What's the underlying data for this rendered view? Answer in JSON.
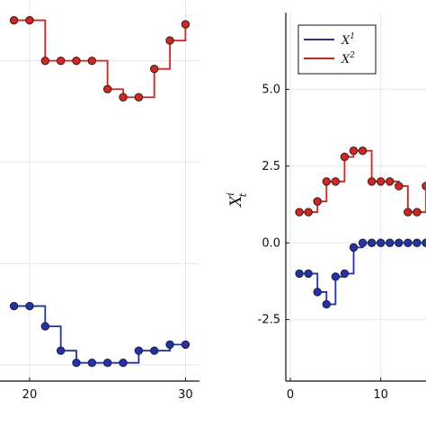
{
  "chart_data": [
    {
      "type": "line",
      "step": "post",
      "markers": true,
      "grid": true,
      "x_ticks": [
        20,
        30
      ],
      "y_ticks": [],
      "xlim": [
        18.1,
        30.9
      ],
      "ylim": [
        -2.9,
        6.5
      ],
      "series": [
        {
          "color": "#e0201b",
          "x": [
            19,
            20,
            21,
            22,
            23,
            24,
            25,
            26,
            27,
            28,
            29,
            30
          ],
          "values": [
            6.0,
            6.0,
            5.0,
            5.0,
            5.0,
            5.0,
            4.3,
            4.1,
            4.1,
            4.8,
            5.5,
            5.9
          ]
        },
        {
          "color": "#2030b8",
          "x": [
            19,
            20,
            21,
            22,
            23,
            24,
            25,
            26,
            27,
            28,
            29,
            30
          ],
          "values": [
            -1.05,
            -1.05,
            -1.55,
            -2.15,
            -2.45,
            -2.45,
            -2.45,
            -2.45,
            -2.15,
            -2.15,
            -2.0,
            -2.0
          ]
        }
      ]
    },
    {
      "type": "line",
      "step": "post",
      "markers": true,
      "grid": true,
      "ylabel": "X",
      "ylabel_sup": "i",
      "ylabel_sub": "t",
      "x_ticks": [
        0,
        10
      ],
      "x_tick_labels": [
        "0",
        "10"
      ],
      "y_ticks": [
        5.0,
        2.5,
        0.0,
        -2.5
      ],
      "y_tick_labels": [
        "5.0",
        "2.5",
        "0.0",
        "-2.5"
      ],
      "xlim": [
        -0.5,
        15
      ],
      "ylim": [
        -4.5,
        7.5
      ],
      "legend_position": "top-left",
      "series": [
        {
          "name": "X",
          "name_sup": "1",
          "color": "#2030b8",
          "x": [
            1,
            2,
            3,
            4,
            5,
            6,
            7,
            8,
            9,
            10,
            11,
            12,
            13,
            14,
            15
          ],
          "values": [
            -1.0,
            -1.0,
            -1.6,
            -2.0,
            -1.1,
            -1.0,
            -0.15,
            0.0,
            0.0,
            0.0,
            0.0,
            0.0,
            0.0,
            0.0,
            0.0
          ]
        },
        {
          "name": "X",
          "name_sup": "2",
          "color": "#e0201b",
          "x": [
            1,
            2,
            3,
            4,
            5,
            6,
            7,
            8,
            9,
            10,
            11,
            12,
            13,
            14,
            15
          ],
          "values": [
            1.0,
            1.0,
            1.35,
            2.0,
            2.0,
            2.8,
            3.0,
            3.0,
            2.0,
            2.0,
            2.0,
            1.85,
            1.0,
            1.0,
            1.85
          ]
        }
      ]
    }
  ]
}
